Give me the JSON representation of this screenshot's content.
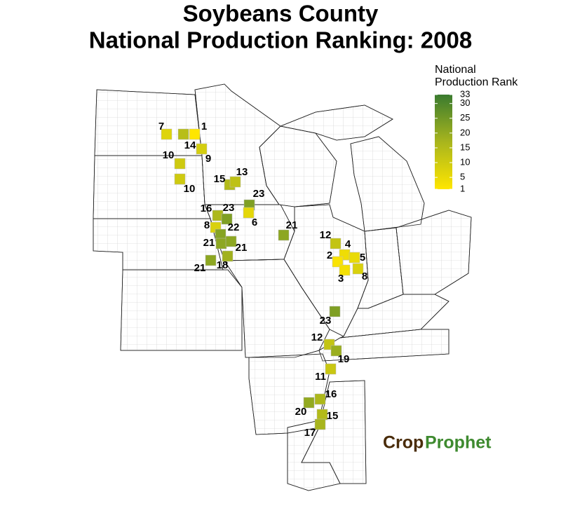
{
  "title": [
    "Soybeans County",
    "National Production Ranking: 2008"
  ],
  "legend": {
    "title": [
      "National",
      "Production Rank"
    ],
    "ticks": [
      1,
      5,
      10,
      15,
      20,
      25,
      30,
      33
    ],
    "colors": [
      "#ffe600",
      "#a8b51d",
      "#3a7b2f"
    ]
  },
  "counties": [
    7,
    1,
    14,
    9,
    10,
    10,
    15,
    13,
    23,
    16,
    23,
    6,
    8,
    22,
    21,
    21,
    21,
    21,
    18,
    12,
    4,
    2,
    5,
    3,
    8,
    23,
    12,
    19,
    11,
    16,
    20,
    15,
    17
  ],
  "logo": [
    "Crop",
    "Prophet"
  ]
}
